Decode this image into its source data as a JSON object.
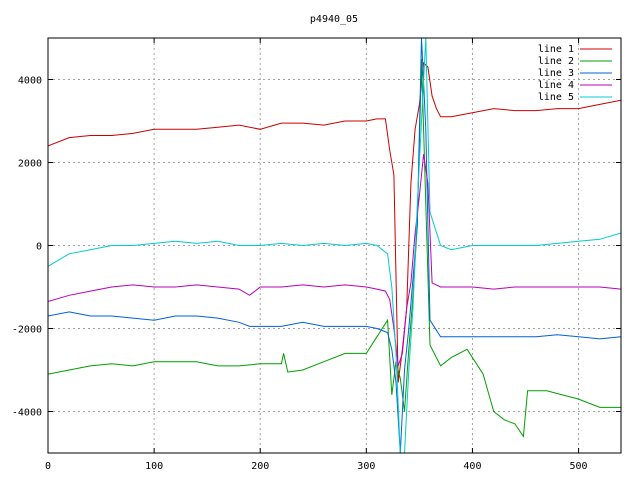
{
  "chart_data": {
    "type": "line",
    "title": "p4940_05",
    "xlabel": "",
    "ylabel": "",
    "xlim": [
      0,
      540
    ],
    "ylim": [
      -5000,
      5000
    ],
    "xticks": [
      0,
      100,
      200,
      300,
      400,
      500
    ],
    "yticks": [
      -4000,
      -2000,
      0,
      2000,
      4000
    ],
    "grid": true,
    "legend_position": "top-right",
    "series": [
      {
        "name": "line 1",
        "color": "#cc0000",
        "x": [
          0,
          20,
          40,
          60,
          80,
          100,
          120,
          140,
          160,
          180,
          200,
          220,
          240,
          260,
          280,
          300,
          310,
          318,
          322,
          326,
          330,
          334,
          338,
          342,
          346,
          350,
          354,
          358,
          362,
          366,
          370,
          380,
          400,
          420,
          440,
          460,
          480,
          500,
          520,
          540
        ],
        "y": [
          2400,
          2600,
          2650,
          2650,
          2700,
          2800,
          2800,
          2800,
          2850,
          2900,
          2800,
          2950,
          2950,
          2900,
          3000,
          3000,
          3050,
          3050,
          2300,
          1700,
          -3300,
          -2500,
          -1500,
          1500,
          2800,
          3400,
          4400,
          4300,
          3600,
          3300,
          3100,
          3100,
          3200,
          3300,
          3250,
          3250,
          3300,
          3300,
          3400,
          3500
        ]
      },
      {
        "name": "line 2",
        "color": "#00a000",
        "x": [
          0,
          20,
          40,
          60,
          80,
          100,
          120,
          140,
          160,
          180,
          200,
          220,
          222,
          226,
          240,
          260,
          280,
          300,
          310,
          320,
          324,
          328,
          332,
          336,
          340,
          344,
          348,
          352,
          356,
          360,
          370,
          380,
          395,
          410,
          420,
          430,
          440,
          448,
          452,
          470,
          500,
          520,
          540
        ],
        "y": [
          -3100,
          -3000,
          -2900,
          -2850,
          -2900,
          -2800,
          -2800,
          -2800,
          -2900,
          -2900,
          -2850,
          -2850,
          -2600,
          -3050,
          -3000,
          -2800,
          -2600,
          -2600,
          -2200,
          -1800,
          -3600,
          -2800,
          -3200,
          -4000,
          -2500,
          -1200,
          500,
          4500,
          1000,
          -2400,
          -2900,
          -2700,
          -2500,
          -3100,
          -4000,
          -4200,
          -4300,
          -4600,
          -3500,
          -3500,
          -3700,
          -3900,
          -3900
        ]
      },
      {
        "name": "line 3",
        "color": "#0060dd",
        "x": [
          0,
          20,
          40,
          60,
          80,
          100,
          120,
          140,
          160,
          180,
          190,
          200,
          220,
          240,
          260,
          280,
          300,
          310,
          320,
          324,
          328,
          332,
          336,
          340,
          344,
          348,
          352,
          356,
          360,
          370,
          380,
          400,
          420,
          440,
          460,
          480,
          500,
          520,
          540
        ],
        "y": [
          -1700,
          -1600,
          -1700,
          -1700,
          -1750,
          -1800,
          -1700,
          -1700,
          -1750,
          -1850,
          -1950,
          -1950,
          -1950,
          -1850,
          -1950,
          -1950,
          -1950,
          -2000,
          -2100,
          -2500,
          -3300,
          -5000,
          -3000,
          -2000,
          -800,
          500,
          5000,
          2800,
          -1800,
          -2200,
          -2200,
          -2200,
          -2200,
          -2200,
          -2200,
          -2150,
          -2200,
          -2250,
          -2200
        ]
      },
      {
        "name": "line 4",
        "color": "#bb00bb",
        "x": [
          0,
          20,
          40,
          60,
          80,
          100,
          120,
          140,
          160,
          180,
          190,
          200,
          220,
          240,
          260,
          280,
          300,
          310,
          318,
          322,
          326,
          330,
          334,
          338,
          342,
          346,
          350,
          354,
          358,
          362,
          370,
          380,
          400,
          420,
          440,
          460,
          480,
          500,
          520,
          540
        ],
        "y": [
          -1350,
          -1200,
          -1100,
          -1000,
          -950,
          -1000,
          -1000,
          -950,
          -1000,
          -1050,
          -1200,
          -1000,
          -1000,
          -950,
          -1000,
          -950,
          -1000,
          -1050,
          -1100,
          -1300,
          -2000,
          -2900,
          -2600,
          -1500,
          -900,
          300,
          1200,
          2200,
          1500,
          -900,
          -1000,
          -1000,
          -1000,
          -1050,
          -1000,
          -1000,
          -1000,
          -1000,
          -1000,
          -1050
        ]
      },
      {
        "name": "line 5",
        "color": "#00cccc",
        "x": [
          0,
          20,
          40,
          60,
          80,
          100,
          120,
          140,
          160,
          180,
          200,
          220,
          240,
          260,
          280,
          300,
          310,
          320,
          324,
          328,
          332,
          336,
          340,
          344,
          348,
          352,
          356,
          360,
          370,
          380,
          400,
          420,
          440,
          460,
          480,
          500,
          520,
          540
        ],
        "y": [
          -500,
          -200,
          -100,
          0,
          0,
          50,
          100,
          50,
          100,
          0,
          0,
          50,
          0,
          50,
          0,
          50,
          0,
          -200,
          -1000,
          -2600,
          -5000,
          -5000,
          -3000,
          -1500,
          1000,
          3000,
          5000,
          800,
          0,
          -100,
          0,
          0,
          0,
          0,
          50,
          100,
          150,
          300
        ]
      }
    ]
  }
}
